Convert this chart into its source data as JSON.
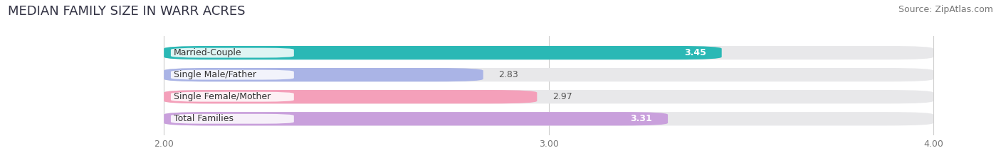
{
  "title": "MEDIAN FAMILY SIZE IN WARR ACRES",
  "source": "Source: ZipAtlas.com",
  "categories": [
    "Married-Couple",
    "Single Male/Father",
    "Single Female/Mother",
    "Total Families"
  ],
  "values": [
    3.45,
    2.83,
    2.97,
    3.31
  ],
  "bar_colors": [
    "#2ab8b5",
    "#aab4e6",
    "#f4a0ba",
    "#c9a0dc"
  ],
  "label_colors": [
    "white",
    "black",
    "black",
    "white"
  ],
  "value_fontcolors": [
    "white",
    "#555555",
    "#555555",
    "white"
  ],
  "xlim_data": [
    2.0,
    4.0
  ],
  "xlim_plot": [
    1.6,
    4.15
  ],
  "xticks": [
    2.0,
    3.0,
    4.0
  ],
  "xtick_labels": [
    "2.00",
    "3.00",
    "4.00"
  ],
  "bar_height": 0.62,
  "background_color": "#ffffff",
  "bar_background_color": "#e8e8ea",
  "title_fontsize": 13,
  "source_fontsize": 9,
  "label_fontsize": 9,
  "value_fontsize": 9,
  "tick_fontsize": 9
}
